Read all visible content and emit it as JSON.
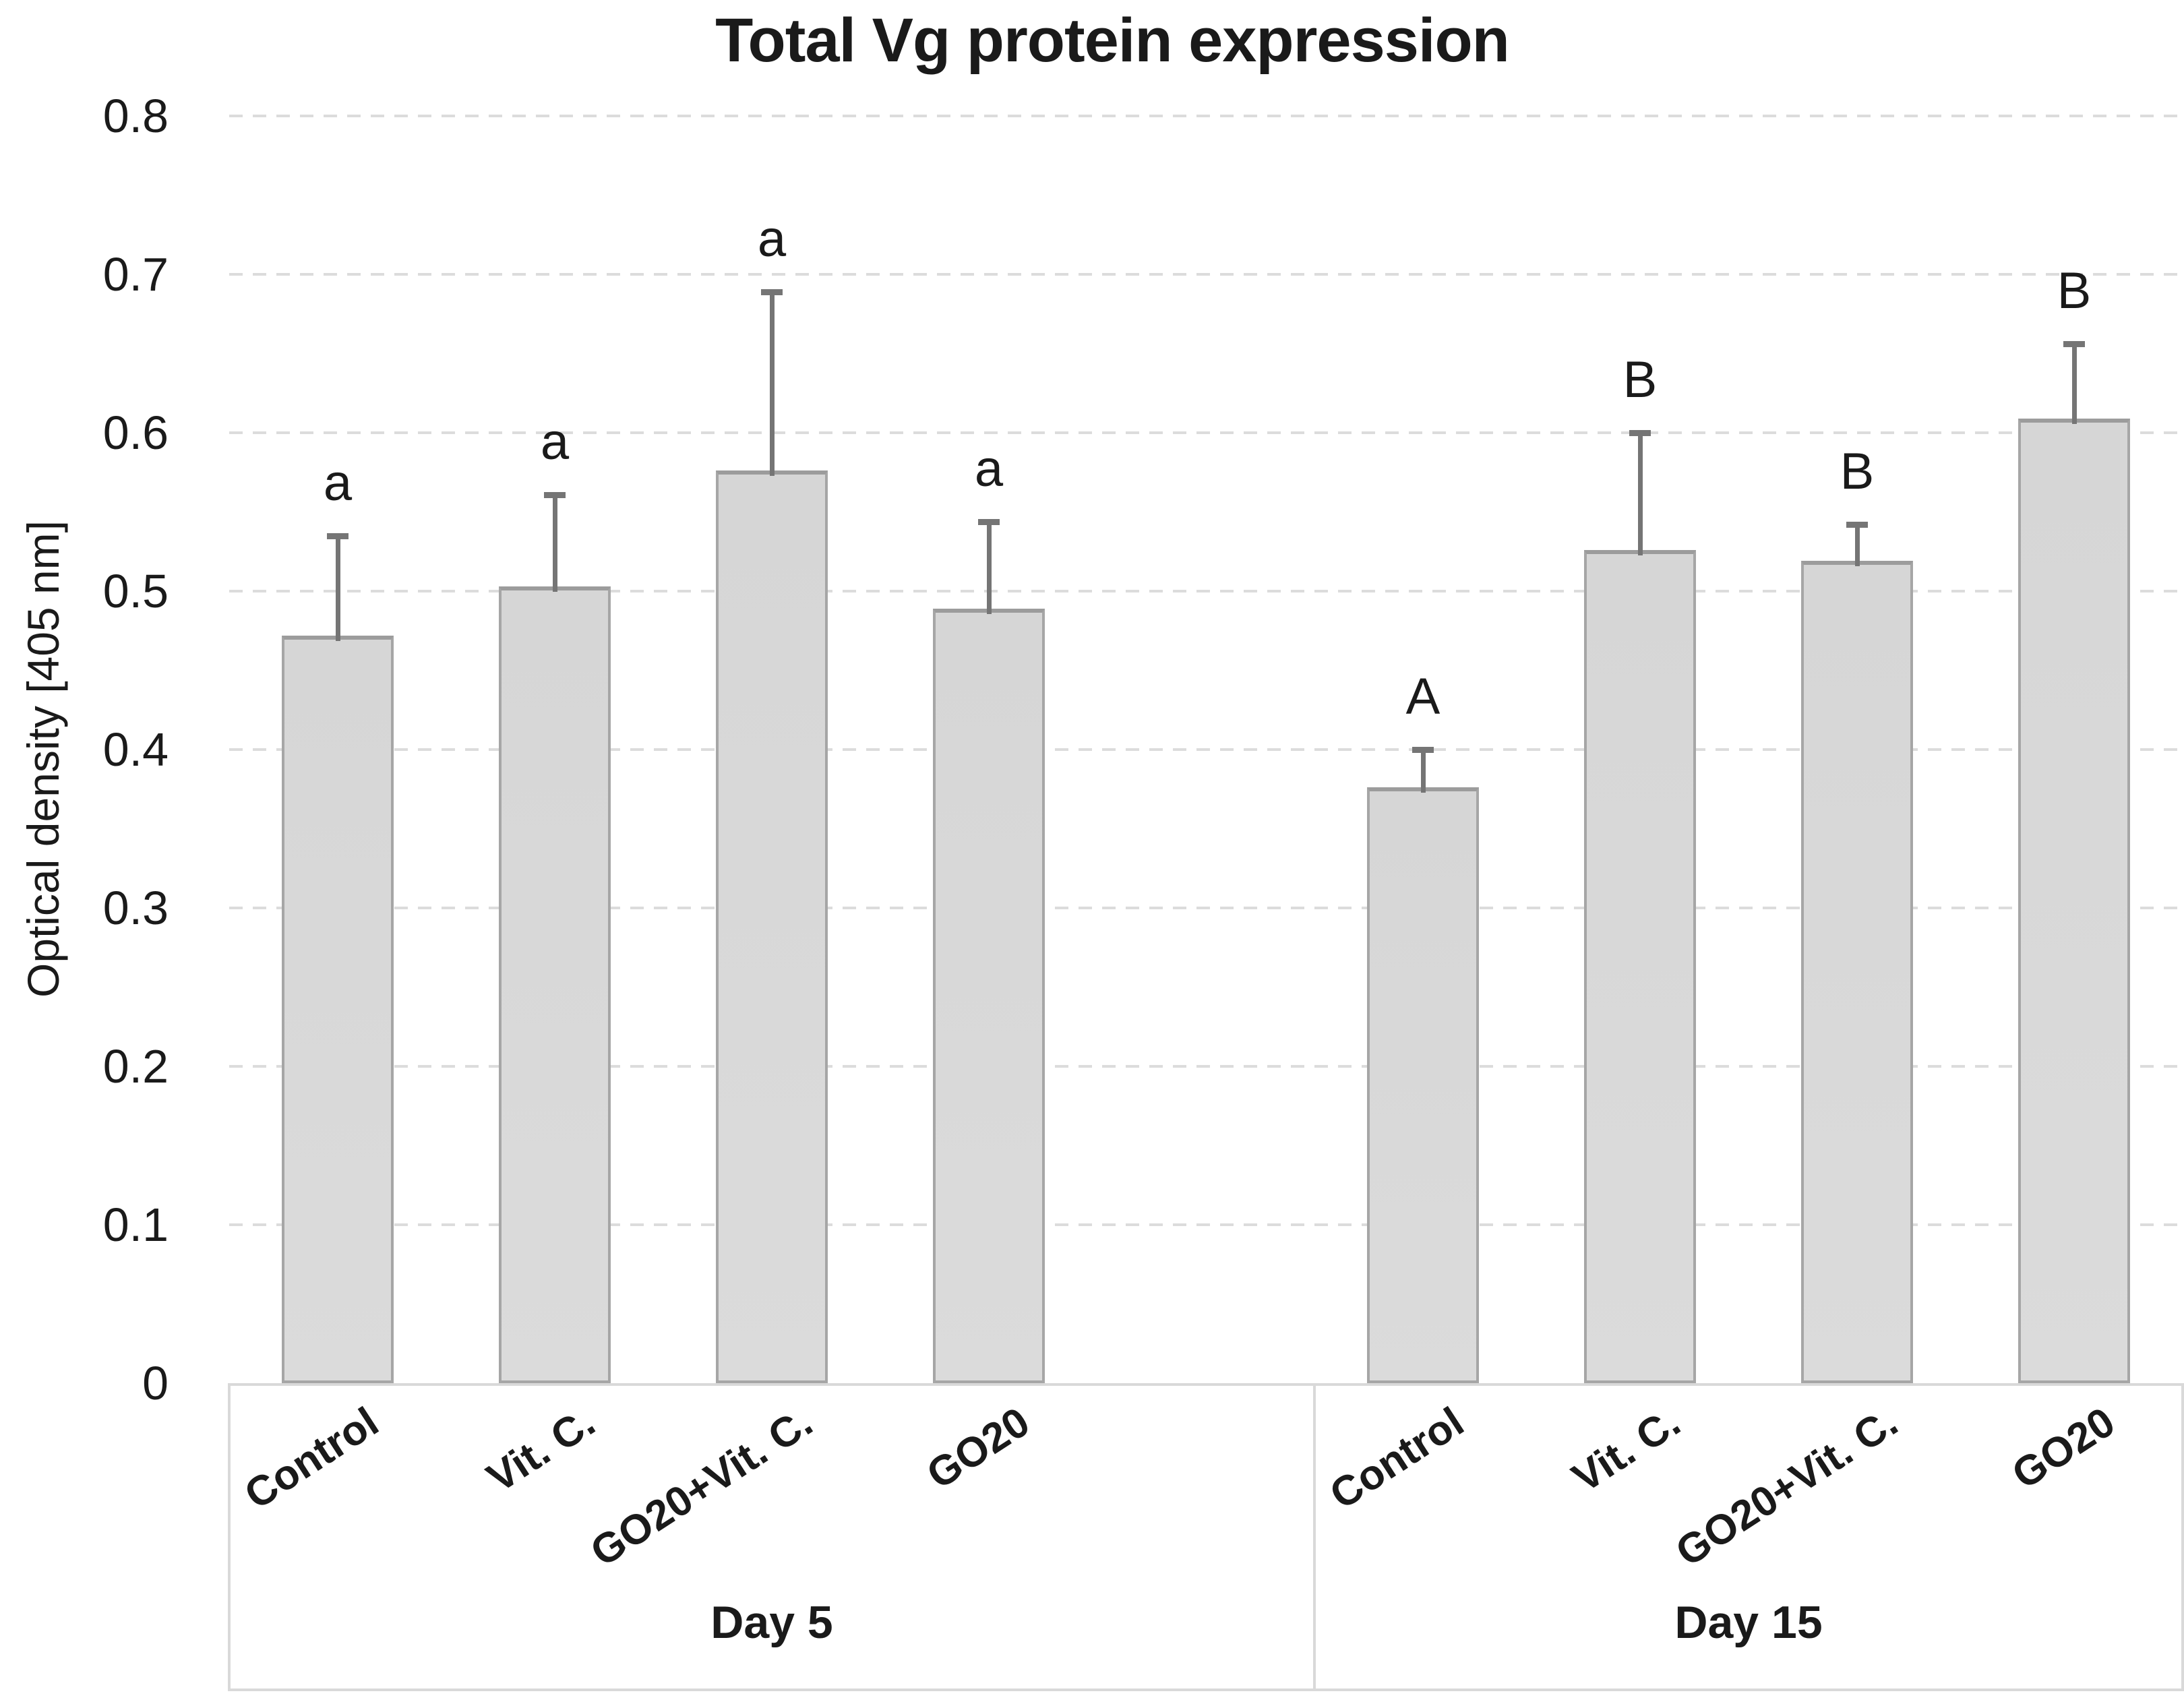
{
  "title": "Total Vg protein expression",
  "y_axis": {
    "title": "Optical density [405 nm]",
    "tick_labels": [
      "0.8",
      "0.7",
      "0.6",
      "0.5",
      "0.4",
      "0.3",
      "0.2",
      "0.1",
      "0"
    ],
    "tick_values": [
      0.8,
      0.7,
      0.6,
      0.5,
      0.4,
      0.3,
      0.2,
      0.1,
      0
    ]
  },
  "chart_data": {
    "type": "bar",
    "title": "Total Vg protein expression",
    "xlabel": "",
    "ylabel": "Optical density [405 nm]",
    "ylim": [
      0,
      0.8
    ],
    "ytick_step": 0.1,
    "grid": "horizontal-dashed",
    "legend": "none",
    "groups": [
      {
        "label": "Day 5",
        "categories": [
          "Control",
          "Vit. C.",
          "GO20+Vit. C.",
          "GO20"
        ],
        "values": [
          0.472,
          0.503,
          0.576,
          0.489
        ],
        "error_top": [
          0.535,
          0.561,
          0.689,
          0.544
        ],
        "sig_letters": [
          "a",
          "a",
          "a",
          "a"
        ]
      },
      {
        "label": "Day 15",
        "categories": [
          "Control",
          "Vit. C.",
          "GO20+Vit. C.",
          "GO20"
        ],
        "values": [
          0.376,
          0.526,
          0.519,
          0.609
        ],
        "error_top": [
          0.4,
          0.6,
          0.542,
          0.656
        ],
        "sig_letters": [
          "A",
          "B",
          "B",
          "B"
        ]
      }
    ]
  },
  "colors": {
    "bar_fill": "#d9d9d9",
    "bar_border": "#a6a6a6",
    "error_bar": "#757575",
    "gridline": "#dcdcdc",
    "axis_border": "#d9d9d9",
    "text": "#1a1a1a",
    "background": "#ffffff"
  }
}
